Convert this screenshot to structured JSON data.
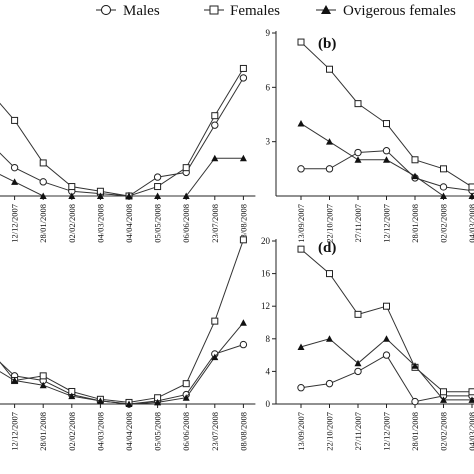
{
  "legend": {
    "items": [
      {
        "label": "Males",
        "marker": "circle-open"
      },
      {
        "label": "Females",
        "marker": "square-open"
      },
      {
        "label": "Ovigerous females",
        "marker": "triangle-filled"
      }
    ]
  },
  "chart_data": [
    {
      "type": "line",
      "panel": "a",
      "title": "",
      "x": [
        "",
        "12/12/2007",
        "28/01/2008",
        "02/02/2008",
        "04/03/2008",
        "04/04/2008",
        "05/05/2008",
        "06/06/2008",
        "23/07/2008",
        "08/08/2008"
      ],
      "series": [
        {
          "name": "Males",
          "marker": "circle-open",
          "values": [
            1.2,
            0.6,
            0.3,
            0.1,
            0.05,
            0,
            0.4,
            0.5,
            1.5,
            2.5
          ]
        },
        {
          "name": "Females",
          "marker": "square-open",
          "values": [
            2.3,
            1.6,
            0.7,
            0.2,
            0.1,
            0,
            0.2,
            0.6,
            1.7,
            2.7
          ]
        },
        {
          "name": "Ovigerous females",
          "marker": "triangle-filled",
          "values": [
            0.6,
            0.3,
            0,
            0,
            0,
            0,
            0,
            0,
            0.8,
            0.8
          ]
        }
      ]
    },
    {
      "type": "line",
      "panel": "b",
      "title": "(b)",
      "x": [
        "13/09/2007",
        "22/10/2007",
        "27/11/2007",
        "12/12/2007",
        "28/01/2008",
        "02/02/2008",
        "04/03/2008"
      ],
      "ylim": [
        0,
        9
      ],
      "yticks": [
        3,
        6,
        9
      ],
      "series": [
        {
          "name": "Males",
          "marker": "circle-open",
          "values": [
            1.5,
            1.5,
            2.4,
            2.5,
            1.0,
            0.5,
            0.3
          ]
        },
        {
          "name": "Females",
          "marker": "square-open",
          "values": [
            8.5,
            7.0,
            5.1,
            4.0,
            2.0,
            1.5,
            0.5
          ]
        },
        {
          "name": "Ovigerous females",
          "marker": "triangle-filled",
          "values": [
            4.0,
            3.0,
            2.0,
            2.0,
            1.1,
            0,
            0
          ]
        }
      ]
    },
    {
      "type": "line",
      "panel": "c",
      "title": "",
      "x": [
        "",
        "12/12/2007",
        "28/01/2008",
        "02/02/2008",
        "04/03/2008",
        "04/04/2008",
        "05/05/2008",
        "06/06/2008",
        "23/07/2008",
        "08/08/2008"
      ],
      "series": [
        {
          "name": "Males",
          "marker": "circle-open",
          "values": [
            3.5,
            1.8,
            1.5,
            0.6,
            0.2,
            0,
            0.2,
            0.6,
            3.2,
            3.8
          ]
        },
        {
          "name": "Females",
          "marker": "square-open",
          "values": [
            3.8,
            1.5,
            1.8,
            0.8,
            0.3,
            0.1,
            0.4,
            1.3,
            5.3,
            10.5
          ]
        },
        {
          "name": "Ovigerous females",
          "marker": "triangle-filled",
          "values": [
            2.6,
            1.5,
            1.2,
            0.5,
            0.2,
            0,
            0.1,
            0.4,
            3.0,
            5.2
          ]
        }
      ]
    },
    {
      "type": "line",
      "panel": "d",
      "title": "(d)",
      "x": [
        "13/09/2007",
        "22/10/2007",
        "27/11/2007",
        "12/12/2007",
        "28/01/2008",
        "02/02/2008",
        "04/03/2008"
      ],
      "ylim": [
        0,
        20
      ],
      "yticks": [
        0,
        4,
        8,
        12,
        16,
        20
      ],
      "series": [
        {
          "name": "Males",
          "marker": "circle-open",
          "values": [
            2.0,
            2.5,
            4.0,
            6.0,
            0.3,
            1.0,
            1.0
          ]
        },
        {
          "name": "Females",
          "marker": "square-open",
          "values": [
            19.0,
            16.0,
            11.0,
            12.0,
            4.5,
            1.5,
            1.5
          ]
        },
        {
          "name": "Ovigerous females",
          "marker": "triangle-filled",
          "values": [
            7.0,
            8.0,
            5.0,
            8.0,
            4.7,
            0.5,
            0.5
          ]
        }
      ]
    }
  ]
}
